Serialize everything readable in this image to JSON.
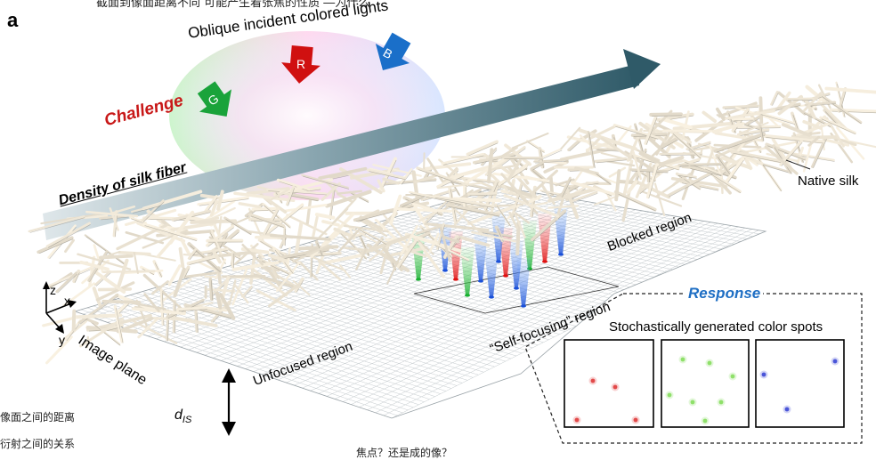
{
  "panel_letter": "a",
  "top_cut_text": "截面到像面距离不同 可能产生着张焦的性质 ―为什么",
  "incident_label": "Oblique incident colored lights",
  "arrows": [
    {
      "letter": "G",
      "color": "#1aa33a"
    },
    {
      "letter": "R",
      "color": "#d01010"
    },
    {
      "letter": "B",
      "color": "#1a6fc9"
    }
  ],
  "challenge_label": "Challenge",
  "density_label": "Density of silk fiber",
  "native_silk_label": "Native silk",
  "blocked_label": "Blocked region",
  "self_focusing_label": "“Self-focusing” region",
  "unfocused_label": "Unfocused region",
  "image_plane_label": "Image plane",
  "axes": {
    "z": "z",
    "x": "x",
    "y": "y"
  },
  "dis_label_main": "d",
  "dis_label_sub": "IS",
  "response_label": "Response",
  "stochastic_label": "Stochastically generated color spots",
  "panels": [
    {
      "name": "red-spots",
      "color": "#e24a4a"
    },
    {
      "name": "green-spots",
      "color": "#8fe06a"
    },
    {
      "name": "blue-spots",
      "color": "#4a55d8"
    }
  ],
  "left_note_1": "像面之间的距离",
  "left_note_2": "衍射之间的关系",
  "bottom_note": "焦点？还是成的像？",
  "colors": {
    "challenge": "#c81818",
    "response": "#1f6fc4",
    "density_arrow": "#3c6673"
  }
}
